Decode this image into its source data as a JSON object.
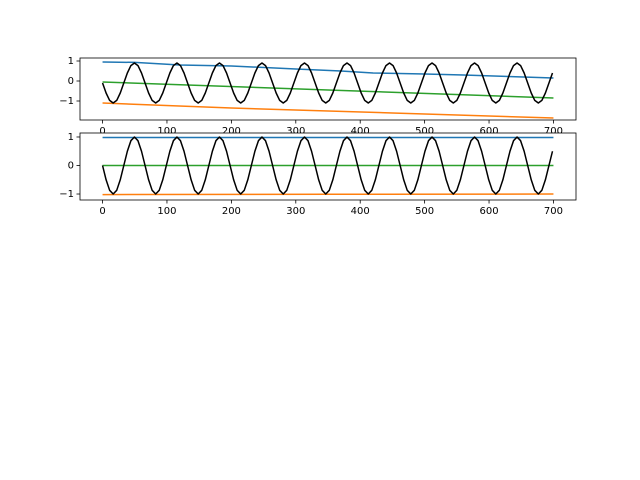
{
  "chart_data": [
    {
      "type": "line",
      "xlim": [
        -35,
        735
      ],
      "ylim": [
        -1.95,
        1.15
      ],
      "xticks": [
        0,
        100,
        200,
        300,
        400,
        500,
        600,
        700
      ],
      "yticks": [
        {
          "value": -1,
          "label": "−1"
        },
        0,
        1
      ],
      "series": [
        {
          "color": "#1f77b4",
          "x": [
            0,
            50,
            120,
            200,
            300,
            370,
            420,
            500,
            560,
            700
          ],
          "values": [
            0.95,
            0.93,
            0.8,
            0.75,
            0.6,
            0.5,
            0.4,
            0.35,
            0.3,
            0.15
          ]
        },
        {
          "color": "#ff7f0e",
          "x": [
            0,
            200,
            450,
            700
          ],
          "values": [
            -1.1,
            -1.35,
            -1.6,
            -1.85
          ]
        },
        {
          "color": "#2ca02c",
          "x": [
            0,
            350,
            700
          ],
          "values": [
            -0.05,
            -0.45,
            -0.85
          ]
        },
        {
          "color": "#000000",
          "x": [
            0,
            5.5,
            11,
            16.5,
            22,
            27.5,
            33,
            38.5,
            44,
            49.5,
            55,
            60.5,
            66,
            71.5,
            77,
            82.5,
            88,
            93.5,
            99,
            104.5,
            110,
            115.5,
            121,
            126.5,
            132,
            137.5,
            143,
            148.5,
            154,
            159.5,
            165,
            170.5,
            176,
            181.5,
            187,
            192.5,
            198,
            203.5,
            209,
            214.5,
            220,
            225.5,
            231,
            236.5,
            242,
            247.5,
            253,
            258.5,
            264,
            269.5,
            275,
            280.5,
            286,
            291.5,
            297,
            302.5,
            308,
            313.5,
            319,
            324.5,
            330,
            335.5,
            341,
            346.5,
            352,
            357.5,
            363,
            368.5,
            374,
            379.5,
            385,
            390.5,
            396,
            401.5,
            407,
            412.5,
            418,
            423.5,
            429,
            434.5,
            440,
            445.5,
            451,
            456.5,
            462,
            467.5,
            473,
            478.5,
            484,
            489.5,
            495,
            500.5,
            506,
            511.5,
            517,
            522.5,
            528,
            533.5,
            539,
            544.5,
            550,
            555.5,
            561,
            566.5,
            572,
            577.5,
            583,
            588.5,
            594,
            599.5,
            605,
            610.5,
            616,
            621.5,
            627,
            632.5,
            638,
            643.5,
            649,
            654.5,
            660,
            665.5,
            671,
            676.5,
            682,
            687.5,
            693,
            698.5
          ],
          "values": [
            -0.1,
            -0.6,
            -0.97,
            -1.1,
            -0.97,
            -0.6,
            -0.1,
            0.4,
            0.77,
            0.9,
            0.77,
            0.4,
            -0.1,
            -0.6,
            -0.97,
            -1.1,
            -0.97,
            -0.6,
            -0.1,
            0.4,
            0.77,
            0.9,
            0.77,
            0.4,
            -0.1,
            -0.6,
            -0.97,
            -1.1,
            -0.97,
            -0.6,
            -0.1,
            0.4,
            0.77,
            0.9,
            0.77,
            0.4,
            -0.1,
            -0.6,
            -0.97,
            -1.1,
            -0.97,
            -0.6,
            -0.1,
            0.4,
            0.77,
            0.9,
            0.77,
            0.4,
            -0.1,
            -0.6,
            -0.97,
            -1.1,
            -0.97,
            -0.6,
            -0.1,
            0.4,
            0.77,
            0.9,
            0.77,
            0.4,
            -0.1,
            -0.6,
            -0.97,
            -1.1,
            -0.97,
            -0.6,
            -0.1,
            0.4,
            0.77,
            0.9,
            0.77,
            0.4,
            -0.1,
            -0.6,
            -0.97,
            -1.1,
            -0.97,
            -0.6,
            -0.1,
            0.4,
            0.77,
            0.9,
            0.77,
            0.4,
            -0.1,
            -0.6,
            -0.97,
            -1.1,
            -0.97,
            -0.6,
            -0.1,
            0.4,
            0.77,
            0.9,
            0.77,
            0.4,
            -0.1,
            -0.6,
            -0.97,
            -1.1,
            -0.97,
            -0.6,
            -0.1,
            0.4,
            0.77,
            0.9,
            0.77,
            0.4,
            -0.1,
            -0.6,
            -0.97,
            -1.1,
            -0.97,
            -0.6,
            -0.1,
            0.4,
            0.77,
            0.9,
            0.77,
            0.4,
            -0.1,
            -0.6,
            -0.97,
            -1.1,
            -0.97,
            -0.6,
            -0.1,
            0.4
          ]
        }
      ]
    },
    {
      "type": "line",
      "xlim": [
        -35,
        735
      ],
      "ylim": [
        -1.21,
        1.14
      ],
      "xticks": [
        0,
        100,
        200,
        300,
        400,
        500,
        600,
        700
      ],
      "yticks": [
        {
          "value": -1,
          "label": "−1"
        },
        0,
        1
      ],
      "series": [
        {
          "color": "#1f77b4",
          "x": [
            0,
            700
          ],
          "values": [
            0.98,
            0.98
          ]
        },
        {
          "color": "#ff7f0e",
          "x": [
            0,
            350,
            700
          ],
          "values": [
            -1.02,
            -1.01,
            -1.0
          ]
        },
        {
          "color": "#2ca02c",
          "x": [
            0,
            700
          ],
          "values": [
            0,
            0
          ]
        },
        {
          "color": "#000000",
          "x": [
            0,
            5.5,
            11,
            16.5,
            22,
            27.5,
            33,
            38.5,
            44,
            49.5,
            55,
            60.5,
            66,
            71.5,
            77,
            82.5,
            88,
            93.5,
            99,
            104.5,
            110,
            115.5,
            121,
            126.5,
            132,
            137.5,
            143,
            148.5,
            154,
            159.5,
            165,
            170.5,
            176,
            181.5,
            187,
            192.5,
            198,
            203.5,
            209,
            214.5,
            220,
            225.5,
            231,
            236.5,
            242,
            247.5,
            253,
            258.5,
            264,
            269.5,
            275,
            280.5,
            286,
            291.5,
            297,
            302.5,
            308,
            313.5,
            319,
            324.5,
            330,
            335.5,
            341,
            346.5,
            352,
            357.5,
            363,
            368.5,
            374,
            379.5,
            385,
            390.5,
            396,
            401.5,
            407,
            412.5,
            418,
            423.5,
            429,
            434.5,
            440,
            445.5,
            451,
            456.5,
            462,
            467.5,
            473,
            478.5,
            484,
            489.5,
            495,
            500.5,
            506,
            511.5,
            517,
            522.5,
            528,
            533.5,
            539,
            544.5,
            550,
            555.5,
            561,
            566.5,
            572,
            577.5,
            583,
            588.5,
            594,
            599.5,
            605,
            610.5,
            616,
            621.5,
            627,
            632.5,
            638,
            643.5,
            649,
            654.5,
            660,
            665.5,
            671,
            676.5,
            682,
            687.5,
            693,
            698.5
          ],
          "values": [
            0,
            -0.5,
            -0.87,
            -1,
            -0.87,
            -0.5,
            0,
            0.5,
            0.87,
            1,
            0.87,
            0.5,
            0,
            -0.5,
            -0.87,
            -1,
            -0.87,
            -0.5,
            0,
            0.5,
            0.87,
            1,
            0.87,
            0.5,
            0,
            -0.5,
            -0.87,
            -1,
            -0.87,
            -0.5,
            0,
            0.5,
            0.87,
            1,
            0.87,
            0.5,
            0,
            -0.5,
            -0.87,
            -1,
            -0.87,
            -0.5,
            0,
            0.5,
            0.87,
            1,
            0.87,
            0.5,
            0,
            -0.5,
            -0.87,
            -1,
            -0.87,
            -0.5,
            0,
            0.5,
            0.87,
            1,
            0.87,
            0.5,
            0,
            -0.5,
            -0.87,
            -1,
            -0.87,
            -0.5,
            0,
            0.5,
            0.87,
            1,
            0.87,
            0.5,
            0,
            -0.5,
            -0.87,
            -1,
            -0.87,
            -0.5,
            0,
            0.5,
            0.87,
            1,
            0.87,
            0.5,
            0,
            -0.5,
            -0.87,
            -1,
            -0.87,
            -0.5,
            0,
            0.5,
            0.87,
            1,
            0.87,
            0.5,
            0,
            -0.5,
            -0.87,
            -1,
            -0.87,
            -0.5,
            0,
            0.5,
            0.87,
            1,
            0.87,
            0.5,
            0,
            -0.5,
            -0.87,
            -1,
            -0.87,
            -0.5,
            0,
            0.5,
            0.87,
            1,
            0.87,
            0.5,
            0,
            -0.5,
            -0.87,
            -1,
            -0.87,
            -0.5,
            0,
            0.5
          ]
        }
      ]
    }
  ]
}
